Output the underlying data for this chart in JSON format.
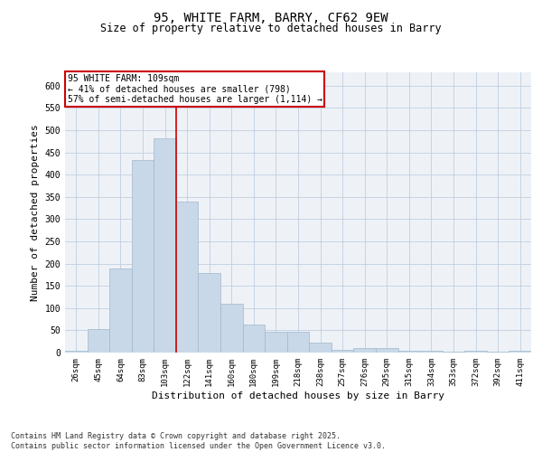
{
  "title1": "95, WHITE FARM, BARRY, CF62 9EW",
  "title2": "Size of property relative to detached houses in Barry",
  "xlabel": "Distribution of detached houses by size in Barry",
  "ylabel": "Number of detached properties",
  "categories": [
    "26sqm",
    "45sqm",
    "64sqm",
    "83sqm",
    "103sqm",
    "122sqm",
    "141sqm",
    "160sqm",
    "180sqm",
    "199sqm",
    "218sqm",
    "238sqm",
    "257sqm",
    "276sqm",
    "295sqm",
    "315sqm",
    "334sqm",
    "353sqm",
    "372sqm",
    "392sqm",
    "411sqm"
  ],
  "values": [
    5,
    52,
    190,
    432,
    481,
    340,
    178,
    110,
    62,
    47,
    47,
    22,
    7,
    10,
    10,
    5,
    5,
    2,
    5,
    2,
    5
  ],
  "bar_color": "#c8d8e8",
  "bar_edge_color": "#a0b8cc",
  "grid_color": "#c8d8e8",
  "vline_x": 4.5,
  "annotation_title": "95 WHITE FARM: 109sqm",
  "annotation_line1": "← 41% of detached houses are smaller (798)",
  "annotation_line2": "57% of semi-detached houses are larger (1,114) →",
  "annotation_box_color": "#ffffff",
  "annotation_box_edge": "#cc0000",
  "vline_color": "#cc0000",
  "ylim": [
    0,
    630
  ],
  "yticks": [
    0,
    50,
    100,
    150,
    200,
    250,
    300,
    350,
    400,
    450,
    500,
    550,
    600
  ],
  "footer": "Contains HM Land Registry data © Crown copyright and database right 2025.\nContains public sector information licensed under the Open Government Licence v3.0.",
  "bg_color": "#eef2f7"
}
